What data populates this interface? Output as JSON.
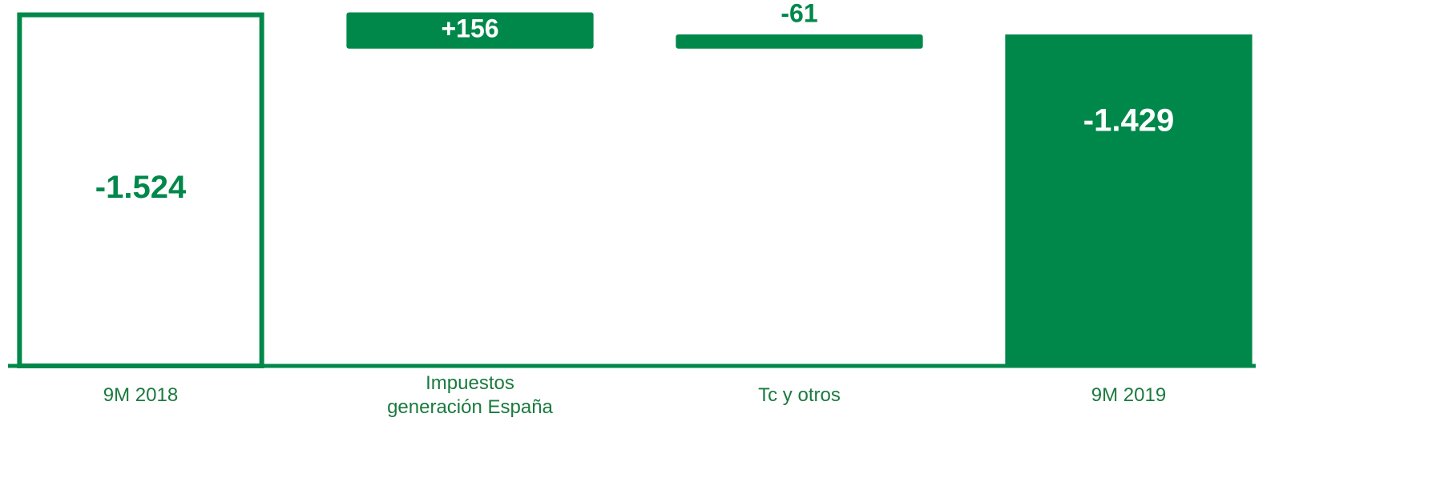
{
  "chart_data": {
    "type": "waterfall",
    "categories": [
      "9M 2018",
      "Impuestos\ngeneración España",
      "Tc y otros",
      "9M 2019"
    ],
    "values": [
      -1524,
      156,
      -61,
      -1429
    ],
    "value_labels": [
      "-1.524",
      "+156",
      "-61",
      "-1.429"
    ],
    "measure": [
      "absolute",
      "relative",
      "relative",
      "total"
    ],
    "color": "#00884a",
    "ylim": [
      0,
      -1550
    ]
  }
}
